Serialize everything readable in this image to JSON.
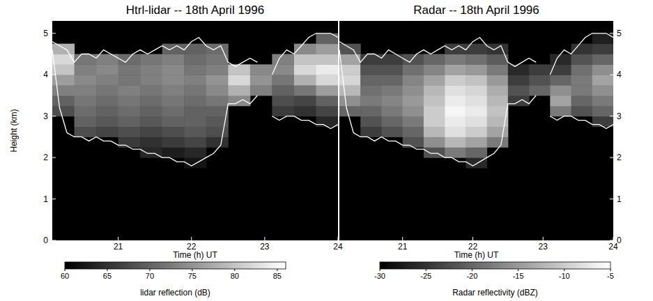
{
  "chart_data": [
    {
      "type": "heatmap",
      "title": "Htrl-lidar -- 18th April 1996",
      "x_label": "Time (h) UT",
      "y_label": "Height (km)",
      "xlim": [
        20.1,
        24.0
      ],
      "xticks": [
        21,
        22,
        23,
        24
      ],
      "ylim": [
        0,
        5.3
      ],
      "yticks": [
        0,
        1,
        2,
        3,
        4,
        5
      ],
      "x_edges": [
        20.1,
        20.4,
        20.7,
        21.0,
        21.3,
        21.6,
        21.9,
        22.2,
        22.5,
        22.8,
        23.1,
        23.4,
        23.7,
        24.0
      ],
      "y_edges": [
        1.75,
        2.0,
        2.25,
        2.5,
        2.75,
        3.0,
        3.25,
        3.5,
        3.75,
        4.0,
        4.25,
        4.5,
        4.75,
        5.0
      ],
      "cells": [
        [
          null,
          null,
          null,
          null,
          null,
          null,
          62,
          null,
          null,
          null,
          null,
          null,
          null
        ],
        [
          null,
          null,
          null,
          null,
          64,
          63,
          64,
          null,
          null,
          null,
          null,
          null,
          null
        ],
        [
          null,
          null,
          null,
          66,
          65,
          66,
          67,
          65,
          null,
          null,
          null,
          null,
          null
        ],
        [
          null,
          68,
          67,
          68,
          67,
          68,
          69,
          68,
          null,
          null,
          null,
          null,
          null
        ],
        [
          null,
          70,
          69,
          70,
          69,
          70,
          70,
          69,
          null,
          null,
          null,
          null,
          64
        ],
        [
          68,
          71,
          70,
          71,
          70,
          71,
          70,
          70,
          null,
          null,
          66,
          65,
          67
        ],
        [
          70,
          72,
          71,
          72,
          71,
          72,
          71,
          72,
          74,
          null,
          68,
          67,
          70
        ],
        [
          73,
          73,
          72,
          73,
          72,
          73,
          72,
          74,
          78,
          73,
          70,
          72,
          76
        ],
        [
          76,
          74,
          73,
          72,
          73,
          74,
          73,
          75,
          82,
          75,
          72,
          78,
          82
        ],
        [
          80,
          73,
          74,
          72,
          73,
          74,
          72,
          73,
          80,
          74,
          74,
          82,
          84
        ],
        [
          82,
          72,
          73,
          71,
          72,
          73,
          71,
          72,
          null,
          null,
          73,
          80,
          80
        ],
        [
          78,
          null,
          null,
          null,
          null,
          70,
          70,
          71,
          null,
          null,
          null,
          74,
          76
        ],
        [
          null,
          null,
          null,
          null,
          null,
          null,
          null,
          null,
          null,
          null,
          null,
          null,
          70
        ]
      ],
      "outline": {
        "x": [
          20.1,
          20.2,
          20.3,
          20.4,
          20.5,
          20.6,
          20.7,
          20.8,
          20.9,
          21.0,
          21.1,
          21.2,
          21.3,
          21.4,
          21.5,
          21.6,
          21.7,
          21.8,
          21.9,
          22.0,
          22.1,
          22.2,
          22.3,
          22.4,
          22.5,
          22.6,
          22.7,
          22.8,
          22.9,
          23.0,
          23.1,
          23.2,
          23.3,
          23.4,
          23.5,
          23.6,
          23.7,
          23.8,
          23.9,
          24.0
        ],
        "top": [
          4.8,
          4.7,
          4.6,
          4.3,
          4.5,
          4.5,
          4.4,
          4.6,
          4.5,
          4.4,
          4.3,
          4.5,
          4.6,
          4.5,
          4.6,
          4.7,
          4.6,
          4.7,
          4.6,
          4.8,
          4.9,
          4.7,
          4.6,
          4.7,
          4.3,
          4.2,
          4.3,
          4.4,
          4.3,
          null,
          4.0,
          4.4,
          4.6,
          4.5,
          4.7,
          4.9,
          5.0,
          5.0,
          5.0,
          4.9
        ],
        "base": [
          4.6,
          3.2,
          2.6,
          2.5,
          2.5,
          2.4,
          2.5,
          2.4,
          2.4,
          2.3,
          2.3,
          2.2,
          2.2,
          2.1,
          2.1,
          2.0,
          2.0,
          1.9,
          1.9,
          1.8,
          1.9,
          2.0,
          2.1,
          2.3,
          3.3,
          3.3,
          3.4,
          3.3,
          3.5,
          null,
          3.0,
          2.9,
          3.0,
          3.0,
          2.9,
          2.9,
          2.8,
          2.8,
          2.7,
          2.8
        ]
      },
      "color_range": [
        60,
        86
      ],
      "color_ticks": [
        60,
        65,
        70,
        75,
        80,
        85
      ],
      "color_label": "lidar reflection (dB)"
    },
    {
      "type": "heatmap",
      "title": "Radar -- 18th April 1996",
      "x_label": "Time (h) UT",
      "xlim": [
        20.1,
        24.0
      ],
      "xticks": [
        21,
        22,
        23,
        24
      ],
      "ylim": [
        0,
        5.3
      ],
      "yticks": [
        0,
        1,
        2,
        3,
        4,
        5
      ],
      "x_edges": [
        20.1,
        20.4,
        20.7,
        21.0,
        21.3,
        21.6,
        21.9,
        22.2,
        22.5,
        22.8,
        23.1,
        23.4,
        23.7,
        24.0
      ],
      "y_edges": [
        1.75,
        2.0,
        2.25,
        2.5,
        2.75,
        3.0,
        3.25,
        3.5,
        3.75,
        4.0,
        4.25,
        4.5,
        4.75,
        5.0
      ],
      "cells": [
        [
          null,
          null,
          null,
          null,
          null,
          null,
          -26,
          null,
          null,
          null,
          null,
          null,
          null
        ],
        [
          null,
          null,
          null,
          null,
          -22,
          -18,
          -20,
          null,
          null,
          null,
          null,
          null,
          null
        ],
        [
          null,
          null,
          null,
          -22,
          -16,
          -12,
          -14,
          -18,
          null,
          null,
          null,
          null,
          null
        ],
        [
          null,
          -24,
          -22,
          -20,
          -12,
          -8,
          -10,
          -14,
          null,
          null,
          null,
          null,
          null
        ],
        [
          null,
          -22,
          -20,
          -18,
          -10,
          -7,
          -8,
          -12,
          null,
          null,
          null,
          null,
          -24
        ],
        [
          -20,
          -20,
          -18,
          -16,
          -10,
          -6,
          -7,
          -11,
          null,
          null,
          -18,
          -22,
          -20
        ],
        [
          -16,
          -18,
          -17,
          -15,
          -11,
          -7,
          -8,
          -12,
          -24,
          null,
          -14,
          -20,
          -18
        ],
        [
          -12,
          -19,
          -18,
          -16,
          -12,
          -8,
          -9,
          -13,
          -22,
          -20,
          -16,
          -18,
          -16
        ],
        [
          -9,
          -20,
          -20,
          -17,
          -14,
          -10,
          -11,
          -15,
          -24,
          -22,
          -20,
          -18,
          -14
        ],
        [
          -10,
          -22,
          -22,
          -19,
          -17,
          -14,
          -15,
          -18,
          -26,
          -24,
          -24,
          -19,
          -16
        ],
        [
          -14,
          -24,
          -24,
          -22,
          -20,
          -18,
          -19,
          -21,
          null,
          null,
          -26,
          -22,
          -20
        ],
        [
          -22,
          null,
          null,
          null,
          null,
          -24,
          -24,
          -25,
          null,
          null,
          null,
          -25,
          -24
        ],
        [
          null,
          null,
          null,
          null,
          null,
          null,
          null,
          null,
          null,
          null,
          null,
          null,
          -27
        ]
      ],
      "outline": {
        "x": [
          20.1,
          20.2,
          20.3,
          20.4,
          20.5,
          20.6,
          20.7,
          20.8,
          20.9,
          21.0,
          21.1,
          21.2,
          21.3,
          21.4,
          21.5,
          21.6,
          21.7,
          21.8,
          21.9,
          22.0,
          22.1,
          22.2,
          22.3,
          22.4,
          22.5,
          22.6,
          22.7,
          22.8,
          22.9,
          23.0,
          23.1,
          23.2,
          23.3,
          23.4,
          23.5,
          23.6,
          23.7,
          23.8,
          23.9,
          24.0
        ],
        "top": [
          4.8,
          4.7,
          4.6,
          4.3,
          4.5,
          4.5,
          4.4,
          4.6,
          4.5,
          4.4,
          4.3,
          4.5,
          4.6,
          4.5,
          4.6,
          4.7,
          4.6,
          4.7,
          4.6,
          4.8,
          4.9,
          4.7,
          4.6,
          4.7,
          4.3,
          4.2,
          4.3,
          4.4,
          4.3,
          null,
          4.0,
          4.4,
          4.6,
          4.5,
          4.7,
          4.9,
          5.0,
          5.0,
          5.0,
          4.9
        ],
        "base": [
          4.6,
          3.2,
          2.6,
          2.5,
          2.5,
          2.4,
          2.5,
          2.4,
          2.4,
          2.3,
          2.3,
          2.2,
          2.2,
          2.1,
          2.1,
          2.0,
          2.0,
          1.9,
          1.9,
          1.8,
          1.9,
          2.0,
          2.1,
          2.3,
          3.3,
          3.3,
          3.4,
          3.3,
          3.5,
          null,
          3.0,
          2.9,
          3.0,
          3.0,
          2.9,
          2.9,
          2.8,
          2.8,
          2.7,
          2.8
        ]
      },
      "color_range": [
        -30,
        -5
      ],
      "color_ticks": [
        -30,
        -25,
        -20,
        -15,
        -10,
        -5
      ],
      "color_label": "Radar reflectivity (dBZ)"
    }
  ]
}
